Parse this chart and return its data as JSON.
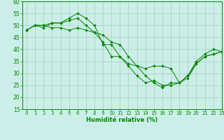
{
  "title": "",
  "xlabel": "Humidité relative (%)",
  "ylabel": "",
  "bg_color": "#cceee8",
  "grid_color": "#aaccbb",
  "line_color": "#008800",
  "marker_color": "#008800",
  "ylim": [
    15,
    60
  ],
  "xlim": [
    -0.5,
    23
  ],
  "yticks": [
    15,
    20,
    25,
    30,
    35,
    40,
    45,
    50,
    55,
    60
  ],
  "xticks": [
    0,
    1,
    2,
    3,
    4,
    5,
    6,
    7,
    8,
    9,
    10,
    11,
    12,
    13,
    14,
    15,
    16,
    17,
    18,
    19,
    20,
    21,
    22,
    23
  ],
  "series": [
    [
      48,
      50,
      50,
      49,
      49,
      48,
      49,
      48,
      47,
      46,
      43,
      42,
      37,
      33,
      32,
      33,
      33,
      32,
      26,
      28,
      34,
      37,
      38,
      39
    ],
    [
      48,
      50,
      50,
      51,
      51,
      53,
      55,
      53,
      50,
      42,
      42,
      37,
      33,
      29,
      26,
      27,
      25,
      25,
      26,
      29,
      34,
      37,
      38,
      39
    ],
    [
      48,
      50,
      49,
      51,
      51,
      52,
      53,
      50,
      47,
      43,
      37,
      37,
      34,
      33,
      29,
      26,
      24,
      26,
      26,
      29,
      35,
      38,
      40,
      39
    ]
  ]
}
